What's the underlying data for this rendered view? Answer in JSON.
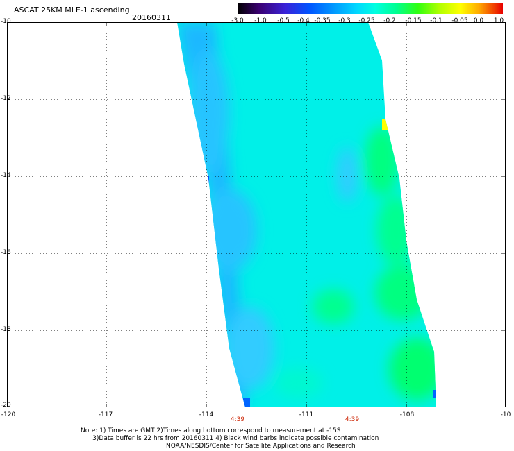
{
  "header": {
    "title": "ASCAT 25KM MLE-1 ascending",
    "date": "20160311"
  },
  "colorbar": {
    "labels": [
      "-3.0",
      "-1.0",
      "-0.5",
      "-0.4",
      "-0.35",
      "-0.3",
      "-0.25",
      "-0.2",
      "-0.15",
      "-0.1",
      "-0.05",
      "0.0",
      "1.0"
    ],
    "colors": [
      "#000000",
      "#3a0070",
      "#3a22d8",
      "#0054ff",
      "#0096ff",
      "#00d8ff",
      "#00ffe0",
      "#00ff90",
      "#30ff10",
      "#b0ff00",
      "#ffff00",
      "#ffaa00",
      "#ff3000",
      "#e80000"
    ]
  },
  "map": {
    "lat_labels": [
      "-10",
      "-12",
      "-14",
      "-16",
      "-18",
      "-20"
    ],
    "lon_labels": [
      "-120",
      "-117",
      "-114",
      "-111",
      "-108",
      "-10"
    ],
    "times": [
      "4:39",
      "4:39"
    ],
    "swath_colors": {
      "base": "#00f0e8",
      "east_green": "#00ff80",
      "west_blue": "#1cb8ff",
      "edge_blue": "#0064ff",
      "yellow": "#ffff00"
    }
  },
  "notes": {
    "line1": "Note: 1) Times are GMT 2)Times along bottom correspond to measurement at -15S",
    "line2": "      3)Data buffer is 22 hrs from 20160311 4) Black wind barbs indicate possible contamination",
    "line3": "                                           NOAA/NESDIS/Center for Satellite Applications and Research"
  }
}
